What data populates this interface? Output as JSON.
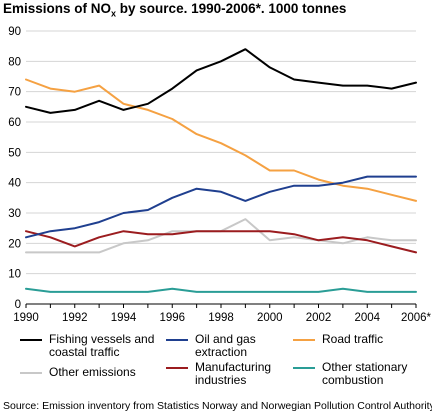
{
  "title": {
    "prefix": "Emissions of NO",
    "subscript": "x",
    "suffix": " by source. 1990-2006*. 1000 tonnes"
  },
  "source": "Source: Emission inventory from Statistics Norway and Norwegian Pollution Control Authority",
  "chart_data": {
    "type": "line",
    "x": [
      1990,
      1991,
      1992,
      1993,
      1994,
      1995,
      1996,
      1997,
      1998,
      1999,
      2000,
      2001,
      2002,
      2003,
      2004,
      2005,
      2006
    ],
    "x_tick_labels": [
      "1990",
      "1992",
      "1994",
      "1996",
      "1998",
      "2000",
      "2002",
      "2004",
      "2006*"
    ],
    "y_tick_labels": [
      "0",
      "10",
      "20",
      "30",
      "40",
      "50",
      "60",
      "70",
      "80",
      "90"
    ],
    "ylim": [
      0,
      90
    ],
    "grid": true,
    "legend_position": "bottom",
    "series": [
      {
        "name": "Fishing vessels and coastal traffic",
        "color": "#000000",
        "values": [
          65,
          63,
          64,
          67,
          64,
          66,
          71,
          77,
          80,
          84,
          78,
          74,
          73,
          72,
          72,
          71,
          73
        ]
      },
      {
        "name": "Oil and gas extraction",
        "color": "#1f3f8f",
        "values": [
          22,
          24,
          25,
          27,
          30,
          31,
          35,
          38,
          37,
          34,
          37,
          39,
          39,
          40,
          42,
          42,
          42
        ]
      },
      {
        "name": "Road traffic",
        "color": "#f5a142",
        "values": [
          74,
          71,
          70,
          72,
          66,
          64,
          61,
          56,
          53,
          49,
          44,
          44,
          41,
          39,
          38,
          36,
          34
        ]
      },
      {
        "name": "Other emissions",
        "color": "#c8c8c8",
        "values": [
          17,
          17,
          17,
          17,
          20,
          21,
          24,
          24,
          24,
          28,
          21,
          22,
          21,
          20,
          22,
          21,
          21
        ]
      },
      {
        "name": "Manufacturing industries",
        "color": "#9b1c1f",
        "values": [
          24,
          22,
          19,
          22,
          24,
          23,
          23,
          24,
          24,
          24,
          24,
          23,
          21,
          22,
          21,
          19,
          17
        ]
      },
      {
        "name": "Other stationary combustion",
        "color": "#2a9d96",
        "values": [
          5,
          4,
          4,
          4,
          4,
          4,
          5,
          4,
          4,
          4,
          4,
          4,
          4,
          5,
          4,
          4,
          4
        ]
      }
    ]
  }
}
